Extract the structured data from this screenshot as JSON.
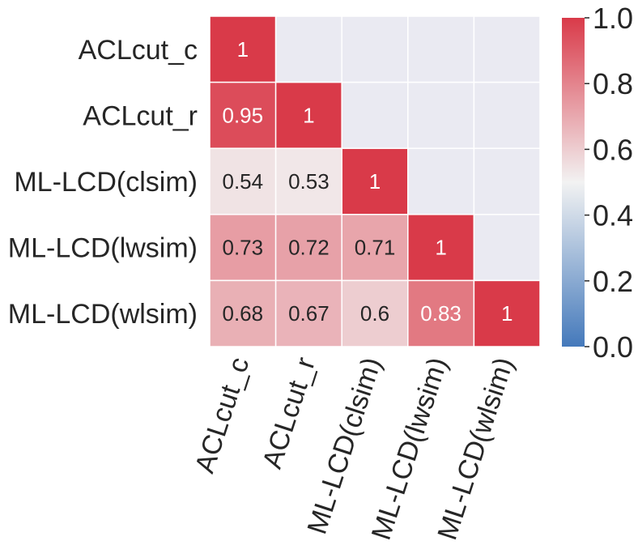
{
  "chart_data": {
    "type": "heatmap",
    "title": "",
    "xlabel": "",
    "ylabel": "",
    "mask": "upper-triangle",
    "labels": [
      "ACLcut_c",
      "ACLcut_r",
      "ML-LCD(clsim)",
      "ML-LCD(lwsim)",
      "ML-LCD(wlsim)"
    ],
    "x_tick_labels": [
      "ACLcut_c",
      "ACLcut_r",
      "ML-LCD(clsim)",
      "ML-LCD(lwsim)",
      "ML-LCD(wlsim)"
    ],
    "y_tick_labels": [
      "ACLcut_c",
      "ACLcut_r",
      "ML-LCD(clsim)",
      "ML-LCD(lwsim)",
      "ML-LCD(wlsim)"
    ],
    "matrix": [
      [
        1,
        null,
        null,
        null,
        null
      ],
      [
        0.95,
        1,
        null,
        null,
        null
      ],
      [
        0.54,
        0.53,
        1,
        null,
        null
      ],
      [
        0.73,
        0.72,
        0.71,
        1,
        null
      ],
      [
        0.68,
        0.67,
        0.6,
        0.83,
        1
      ]
    ],
    "cell_labels": [
      [
        "1",
        "",
        "",
        "",
        ""
      ],
      [
        "0.95",
        "1",
        "",
        "",
        ""
      ],
      [
        "0.54",
        "0.53",
        "1",
        "",
        ""
      ],
      [
        "0.73",
        "0.72",
        "0.71",
        "1",
        ""
      ],
      [
        "0.68",
        "0.67",
        "0.6",
        "0.83",
        "1"
      ]
    ],
    "colorbar": {
      "range": [
        0.0,
        1.0
      ],
      "ticks": [
        0.0,
        0.2,
        0.4,
        0.6,
        0.8,
        1.0
      ],
      "tick_labels": [
        "0.0",
        "0.2",
        "0.4",
        "0.6",
        "0.8",
        "1.0"
      ],
      "colormap": "diverging blue-white-red"
    }
  },
  "colors": {
    "low": "#4479bb",
    "mid": "#f2f2f2",
    "high": "#d93a49",
    "masked": "#eaeaf2",
    "grid": "#ffffff",
    "text_dark": "#262626",
    "text_light": "#ffffff"
  }
}
